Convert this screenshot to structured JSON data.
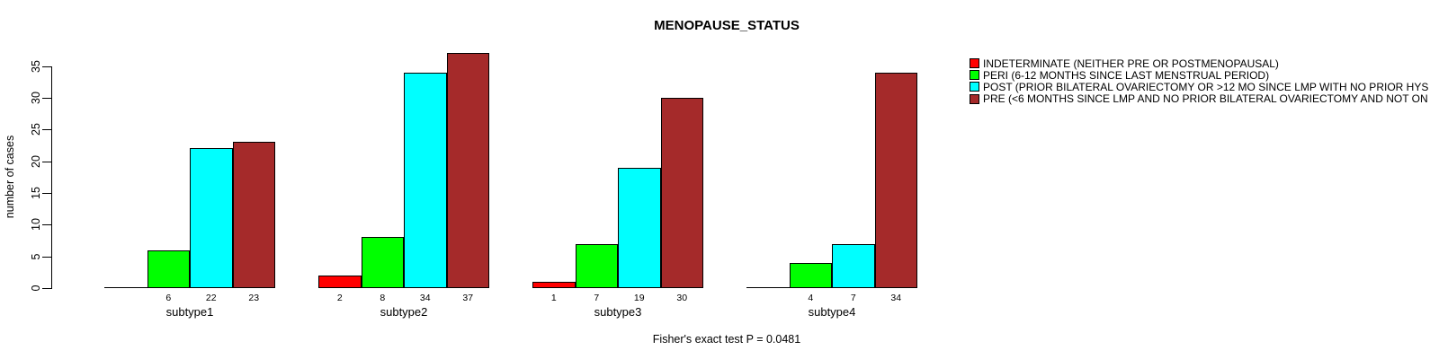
{
  "chart_data": {
    "type": "bar",
    "title": "MENOPAUSE_STATUS",
    "ylabel": "number of cases",
    "xlabel": "",
    "categories": [
      "subtype1",
      "subtype2",
      "subtype3",
      "subtype4"
    ],
    "series": [
      {
        "name": "INDETERMINATE (NEITHER PRE OR POSTMENOPAUSAL)",
        "color": "#ff0000",
        "values": [
          0,
          2,
          1,
          0
        ]
      },
      {
        "name": "PERI (6-12 MONTHS SINCE LAST MENSTRUAL PERIOD)",
        "color": "#00ff00",
        "values": [
          6,
          8,
          7,
          4
        ]
      },
      {
        "name": "POST (PRIOR BILATERAL OVARIECTOMY OR >12 MO SINCE LMP WITH NO PRIOR HYS",
        "color": "#00ffff",
        "values": [
          22,
          34,
          19,
          7
        ]
      },
      {
        "name": "PRE (<6 MONTHS SINCE LMP AND NO PRIOR BILATERAL OVARIECTOMY AND NOT ON",
        "color": "#a52a2a",
        "values": [
          23,
          37,
          30,
          34
        ]
      }
    ],
    "yticks": [
      0,
      5,
      10,
      15,
      20,
      25,
      30,
      35
    ],
    "ylim": [
      0,
      35
    ],
    "bar_value_labels_shown": true,
    "zero_value_bars_drawn_as_line": true,
    "grid": false,
    "legend_position": "right",
    "annotation": "Fisher's exact test P = 0.0481",
    "axis_color": "#000000",
    "background_color": "#ffffff"
  }
}
